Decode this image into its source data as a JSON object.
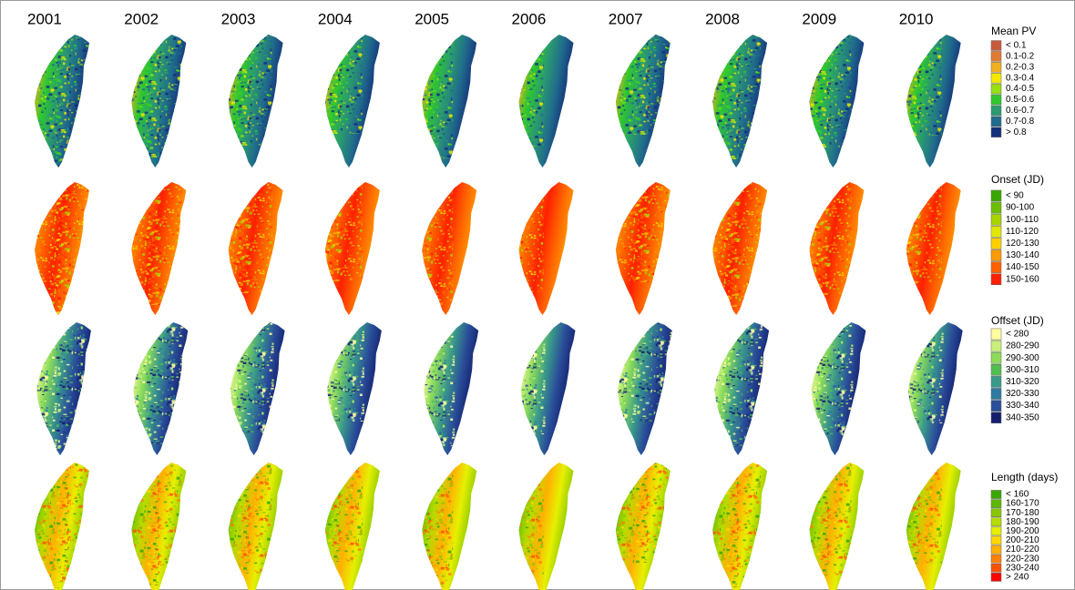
{
  "years": [
    "2001",
    "2002",
    "2003",
    "2004",
    "2005",
    "2006",
    "2007",
    "2008",
    "2009",
    "2010"
  ],
  "legends": [
    {
      "title": "Mean PV",
      "items": [
        {
          "label": "< 0.1",
          "color": "#c85a3c"
        },
        {
          "label": "0.1-0.2",
          "color": "#e07a30"
        },
        {
          "label": "0.2-0.3",
          "color": "#f0b020"
        },
        {
          "label": "0.3-0.4",
          "color": "#f5e800"
        },
        {
          "label": "0.4-0.5",
          "color": "#98e010"
        },
        {
          "label": "0.5-0.6",
          "color": "#2ec82e"
        },
        {
          "label": "0.6-0.7",
          "color": "#2a9a70"
        },
        {
          "label": "0.7-0.8",
          "color": "#206c8c"
        },
        {
          "label": "> 0.8",
          "color": "#14307a"
        }
      ]
    },
    {
      "title": "Onset (JD)",
      "items": [
        {
          "label": "< 90",
          "color": "#38a800"
        },
        {
          "label": "90-100",
          "color": "#6cbf00"
        },
        {
          "label": "100-110",
          "color": "#a8d400"
        },
        {
          "label": "110-120",
          "color": "#e0e800"
        },
        {
          "label": "120-130",
          "color": "#ffd000"
        },
        {
          "label": "130-140",
          "color": "#ff9a00"
        },
        {
          "label": "140-150",
          "color": "#ff6000"
        },
        {
          "label": "150-160",
          "color": "#ff2000"
        }
      ]
    },
    {
      "title": "Offset (JD)",
      "items": [
        {
          "label": "< 280",
          "color": "#ffffa0"
        },
        {
          "label": "280-290",
          "color": "#c8f07a"
        },
        {
          "label": "290-300",
          "color": "#8cdc5a"
        },
        {
          "label": "300-310",
          "color": "#50be50"
        },
        {
          "label": "310-320",
          "color": "#3a9a8a"
        },
        {
          "label": "320-330",
          "color": "#2e7aa0"
        },
        {
          "label": "330-340",
          "color": "#2a4e9a"
        },
        {
          "label": "340-350",
          "color": "#14206e"
        }
      ]
    },
    {
      "title": "Length (days)",
      "items": [
        {
          "label": "< 160",
          "color": "#38a800"
        },
        {
          "label": "160-170",
          "color": "#5cb800"
        },
        {
          "label": "170-180",
          "color": "#88c800"
        },
        {
          "label": "180-190",
          "color": "#b4dc00"
        },
        {
          "label": "190-200",
          "color": "#e6f000"
        },
        {
          "label": "200-210",
          "color": "#ffd800"
        },
        {
          "label": "210-220",
          "color": "#ffb000"
        },
        {
          "label": "220-230",
          "color": "#ff8000"
        },
        {
          "label": "230-240",
          "color": "#ff5000"
        },
        {
          "label": "> 240",
          "color": "#ff0000"
        }
      ]
    }
  ]
}
